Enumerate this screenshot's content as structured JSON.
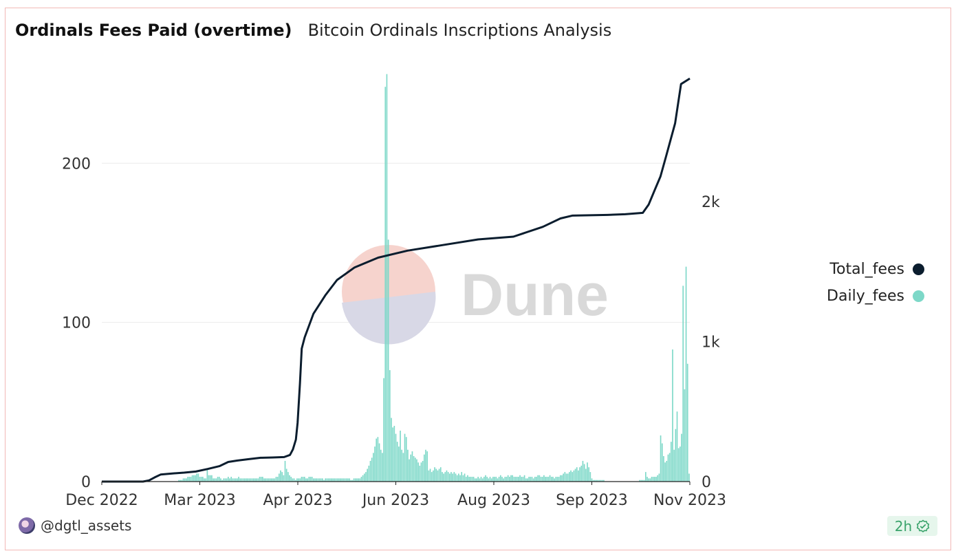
{
  "header": {
    "title": "Ordinals Fees Paid (overtime)",
    "subtitle": "Bitcoin Ordinals Inscriptions Analysis"
  },
  "watermark": {
    "text": "Dune"
  },
  "legend": [
    {
      "label": "Total_fees",
      "color": "#0b1d2e"
    },
    {
      "label": "Daily_fees",
      "color": "#7dd8c8"
    }
  ],
  "footer": {
    "username": "@dgtl_assets",
    "freshness_label": "2h",
    "icon": "verified-check-icon"
  },
  "chart_data": {
    "type": "bar",
    "x_tick_labels": [
      "Dec 2022",
      "Mar 2023",
      "Apr 2023",
      "Jun 2023",
      "Aug 2023",
      "Sep 2023",
      "Nov 2023"
    ],
    "y_left": {
      "ticks": [
        0,
        100,
        200
      ],
      "tick_labels": [
        "0",
        "100",
        "200"
      ],
      "range": [
        0,
        255
      ]
    },
    "y_right": {
      "ticks": [
        0,
        1000,
        2000
      ],
      "tick_labels": [
        "0",
        "1k",
        "2k"
      ],
      "range": [
        0,
        2900
      ]
    },
    "grid": true,
    "legend_position": "right",
    "series": [
      {
        "name": "Daily_fees",
        "kind": "bar",
        "axis": "left",
        "color": "#7dd8c8",
        "values": [
          0,
          0,
          0,
          0,
          0,
          0,
          0,
          0,
          0,
          0,
          0,
          0,
          0,
          0,
          0,
          0,
          0,
          0,
          0,
          0,
          0,
          0,
          0,
          0,
          0,
          0,
          0,
          0,
          0,
          0,
          0,
          0,
          0,
          0,
          0,
          0,
          0,
          0,
          0,
          0,
          0,
          0,
          0,
          0,
          0,
          0,
          0,
          0,
          0,
          0,
          0,
          1,
          1,
          1,
          2,
          2,
          2,
          3,
          3,
          3,
          4,
          4,
          4,
          5,
          5,
          3,
          3,
          3,
          2,
          2,
          8,
          4,
          4,
          4,
          2,
          2,
          2,
          3,
          3,
          2,
          1,
          2,
          2,
          2,
          3,
          2,
          3,
          2,
          2,
          2,
          2,
          3,
          2,
          2,
          2,
          2,
          2,
          2,
          2,
          2,
          2,
          2,
          2,
          2,
          2,
          3,
          3,
          3,
          2,
          2,
          2,
          2,
          2,
          2,
          2,
          2,
          3,
          3,
          5,
          7,
          6,
          4,
          13,
          8,
          6,
          4,
          3,
          2,
          2,
          1,
          2,
          2,
          2,
          3,
          3,
          3,
          2,
          2,
          3,
          3,
          3,
          2,
          2,
          2,
          2,
          2,
          2,
          2,
          1,
          2,
          2,
          2,
          2,
          2,
          2,
          2,
          2,
          2,
          2,
          2,
          2,
          2,
          2,
          2,
          2,
          2,
          1,
          1,
          2,
          2,
          2,
          2,
          2,
          3,
          4,
          5,
          6,
          8,
          10,
          13,
          15,
          18,
          22,
          27,
          28,
          24,
          20,
          18,
          65,
          248,
          256,
          152,
          70,
          40,
          34,
          35,
          30,
          25,
          22,
          32,
          20,
          18,
          30,
          28,
          20,
          14,
          17,
          19,
          16,
          15,
          14,
          12,
          10,
          12,
          13,
          17,
          20,
          19,
          7,
          8,
          6,
          7,
          9,
          8,
          7,
          8,
          9,
          6,
          5,
          6,
          7,
          6,
          5,
          6,
          5,
          6,
          5,
          4,
          5,
          4,
          6,
          4,
          5,
          3,
          4,
          3,
          3,
          3,
          3,
          2,
          2,
          3,
          2,
          3,
          2,
          3,
          4,
          3,
          2,
          3,
          2,
          3,
          3,
          3,
          2,
          3,
          4,
          3,
          2,
          3,
          3,
          4,
          3,
          4,
          4,
          3,
          3,
          3,
          3,
          4,
          3,
          3,
          4,
          2,
          2,
          3,
          3,
          3,
          2,
          3,
          3,
          4,
          4,
          3,
          3,
          4,
          3,
          3,
          3,
          4,
          3,
          3,
          2,
          3,
          3,
          3,
          4,
          4,
          5,
          6,
          5,
          5,
          6,
          7,
          6,
          7,
          8,
          9,
          7,
          9,
          10,
          13,
          11,
          8,
          12,
          9,
          6,
          2,
          1,
          1,
          1,
          1,
          1,
          1,
          1,
          1,
          0,
          0,
          0,
          0,
          0,
          0,
          0,
          0,
          0,
          0,
          0,
          0,
          0,
          0,
          0,
          0,
          0,
          0,
          0,
          0,
          0,
          0,
          0,
          1,
          1,
          1,
          1,
          6,
          3,
          2,
          2,
          3,
          3,
          3,
          3,
          4,
          5,
          29,
          24,
          16,
          12,
          13,
          17,
          18,
          25,
          83,
          20,
          33,
          44,
          21,
          22,
          30,
          123,
          58,
          135,
          74,
          5
        ]
      },
      {
        "name": "Total_fees",
        "kind": "line",
        "axis": "right",
        "color": "#0b1d2e",
        "points": [
          [
            0,
            0
          ],
          [
            0.07,
            0
          ],
          [
            0.08,
            8
          ],
          [
            0.09,
            30
          ],
          [
            0.1,
            50
          ],
          [
            0.12,
            58
          ],
          [
            0.14,
            64
          ],
          [
            0.16,
            72
          ],
          [
            0.18,
            90
          ],
          [
            0.2,
            110
          ],
          [
            0.215,
            140
          ],
          [
            0.23,
            150
          ],
          [
            0.25,
            160
          ],
          [
            0.27,
            170
          ],
          [
            0.29,
            172
          ],
          [
            0.31,
            175
          ],
          [
            0.32,
            190
          ],
          [
            0.325,
            230
          ],
          [
            0.33,
            300
          ],
          [
            0.333,
            420
          ],
          [
            0.337,
            700
          ],
          [
            0.34,
            950
          ],
          [
            0.345,
            1030
          ],
          [
            0.36,
            1200
          ],
          [
            0.38,
            1330
          ],
          [
            0.4,
            1440
          ],
          [
            0.43,
            1530
          ],
          [
            0.47,
            1600
          ],
          [
            0.52,
            1650
          ],
          [
            0.58,
            1690
          ],
          [
            0.64,
            1730
          ],
          [
            0.7,
            1750
          ],
          [
            0.75,
            1820
          ],
          [
            0.78,
            1880
          ],
          [
            0.8,
            1900
          ],
          [
            0.86,
            1905
          ],
          [
            0.89,
            1910
          ],
          [
            0.92,
            1920
          ],
          [
            0.93,
            1980
          ],
          [
            0.94,
            2080
          ],
          [
            0.95,
            2180
          ],
          [
            0.96,
            2330
          ],
          [
            0.975,
            2560
          ],
          [
            0.985,
            2840
          ],
          [
            1.0,
            2880
          ]
        ]
      }
    ]
  }
}
